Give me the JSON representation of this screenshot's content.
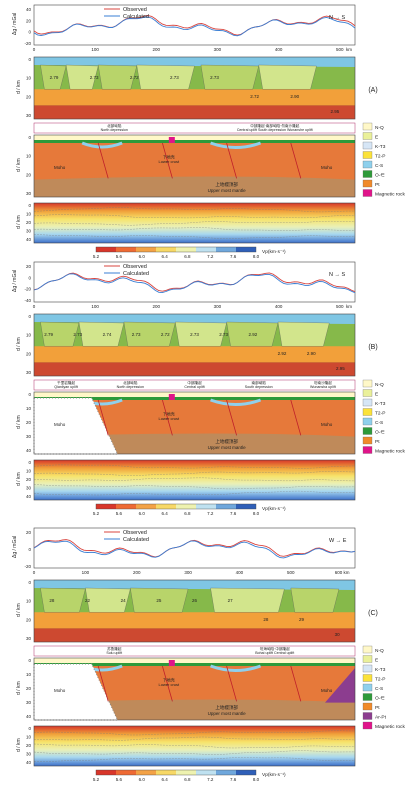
{
  "common": {
    "legend_observed": "Observed",
    "legend_calculated": "Calculated",
    "dg_label": "Δg / mGal",
    "depth_label": "d / km",
    "vp_label": "Vp(km·s⁻¹)",
    "vp_ticks": [
      "5.2",
      "5.6",
      "6.0",
      "6.4",
      "6.8",
      "7.2",
      "7.6",
      "8.0"
    ],
    "moho": "Moho",
    "lower_crust": "下地壳\nLower crust",
    "upper_mantle_cn": "上地幔顶部",
    "upper_mantle_en": "Upper most mantle",
    "strata": [
      "N-Q",
      "E",
      "K-T3",
      "T2-P",
      "C-S",
      "O-∈",
      "Pt"
    ],
    "magnetic": "Magnetic rock",
    "colors": {
      "observed": "#d9453f",
      "calculated": "#3a7fd4",
      "NQ": "#fff8c8",
      "E": "#eaf09a",
      "KT3": "#d6e6f6",
      "T2P": "#fbe23a",
      "CS": "#8fd0ec",
      "OE": "#2e9a3a",
      "Pt": "#f08a2a",
      "ArPt": "#8c3d8f",
      "mag": "#e0148a",
      "mantle": "#bf8a5a",
      "lower": "#e6793a",
      "l1": "#d2e58c",
      "l2": "#86b94a",
      "l3": "#f2a03a",
      "l4": "#cd4930"
    }
  },
  "panel_a": {
    "label": "(A)",
    "direction": "N → S",
    "x_ticks": [
      "0",
      "100",
      "200",
      "300",
      "400",
      "500"
    ],
    "x_unit": "km",
    "dg_ticks": [
      "40",
      "20",
      "0",
      "-20"
    ],
    "depth_ticks": [
      "0",
      "10",
      "20",
      "30"
    ],
    "region_labels": [
      "北部坳陷\nNorth depression",
      "中部隆起·南部坳陷·勿南沙隆起\nCentral uplift  South depression  Wunanshe uplift"
    ],
    "xsec_depth_ticks": [
      "0",
      "10",
      "20",
      "30"
    ],
    "vp_depth_ticks": [
      "0",
      "10",
      "20",
      "30",
      "40"
    ],
    "layer_values": [
      "2.79",
      "2.73",
      "2.72",
      "2.73",
      "2.73",
      "2.72",
      "2.90",
      "2.95"
    ]
  },
  "panel_b": {
    "label": "(B)",
    "direction": "N → S",
    "x_ticks": [
      "0",
      "100",
      "200",
      "300",
      "400",
      "500"
    ],
    "x_unit": "km",
    "dg_ticks": [
      "20",
      "0",
      "-20",
      "-40"
    ],
    "depth_ticks": [
      "0",
      "10",
      "20",
      "30"
    ],
    "region_labels": [
      "千里岩隆起\nQianliyan uplift",
      "北部坳陷\nNorth depression",
      "中部隆起\nCentral uplift",
      "南部坳陷\nSouth depression",
      "勿南沙隆起\nWunansha uplift"
    ],
    "xsec_depth_ticks": [
      "0",
      "10",
      "20",
      "30",
      "40"
    ],
    "vp_depth_ticks": [
      "0",
      "10",
      "20",
      "30",
      "40"
    ],
    "layer_values": [
      "2.79",
      "2.73",
      "2.74",
      "2.73",
      "2.72",
      "2.73",
      "2.73",
      "2.92",
      "2.92",
      "2.90",
      "2.95"
    ]
  },
  "panel_c": {
    "label": "(C)",
    "direction": "W → E",
    "x_ticks": [
      "0",
      "100",
      "200",
      "300",
      "400",
      "500",
      "600 km"
    ],
    "dg_ticks": [
      "20",
      "0",
      "-20"
    ],
    "depth_ticks": [
      "0",
      "10",
      "20",
      "30"
    ],
    "region_labels": [
      "苏鲁隆起\nSulu uplift",
      "勿海坳陷·中部隆起\nBohai uplift  Central uplift"
    ],
    "xsec_depth_ticks": [
      "0",
      "10",
      "20",
      "30",
      "40"
    ],
    "vp_depth_ticks": [
      "0",
      "10",
      "20",
      "30",
      "40"
    ],
    "layer_values": [
      "28",
      "22",
      "24",
      "25",
      "26",
      "27",
      "28",
      "29",
      "30"
    ],
    "extra_strata": [
      "Ar-Pt"
    ]
  }
}
